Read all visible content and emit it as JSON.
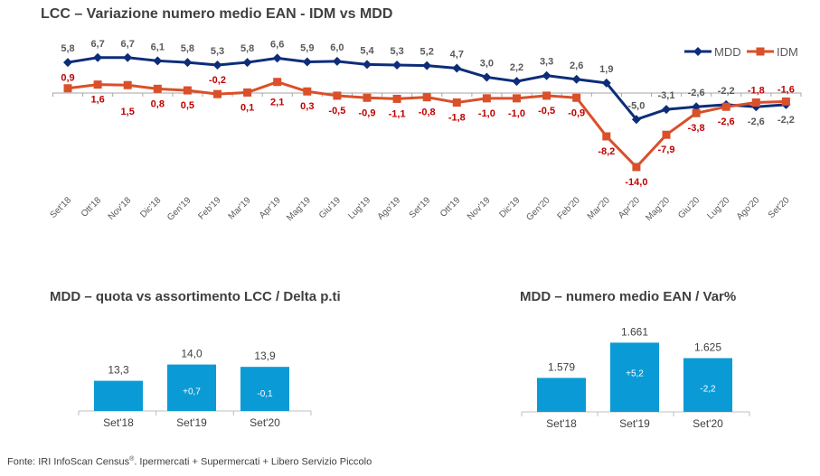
{
  "chart_data": [
    {
      "type": "line",
      "title": "LCC – Variazione numero medio EAN - IDM vs MDD",
      "categories": [
        "Set'18",
        "Ott'18",
        "Nov'18",
        "Dic'18",
        "Gen'19",
        "Feb'19",
        "Mar'19",
        "Apr'19",
        "Mag'19",
        "Giu'19",
        "Lug'19",
        "Ago'19",
        "Set'19",
        "Ott'19",
        "Nov'19",
        "Dic'19",
        "Gen'20",
        "Feb'20",
        "Mar'20",
        "Apr'20",
        "Mag'20",
        "Giu'20",
        "Lug'20",
        "Ago'20",
        "Set'20"
      ],
      "series": [
        {
          "name": "MDD",
          "color": "#0d2d7a",
          "marker": "diamond",
          "values": [
            5.8,
            6.7,
            6.7,
            6.1,
            5.8,
            5.3,
            5.8,
            6.6,
            5.9,
            6.0,
            5.4,
            5.3,
            5.2,
            4.7,
            3.0,
            2.2,
            3.3,
            2.6,
            1.9,
            -5.0,
            -3.1,
            -2.6,
            -2.2,
            -2.6,
            -2.2
          ],
          "labels": [
            "5,8",
            "6,7",
            "6,7",
            "6,1",
            "5,8",
            "5,3",
            "5,8",
            "6,6",
            "5,9",
            "6,0",
            "5,4",
            "5,3",
            "5,2",
            "4,7",
            "3,0",
            "2,2",
            "3,3",
            "2,6",
            "1,9",
            "-5,0",
            "-3,1",
            "-2,6",
            "-2,2",
            "-2,6",
            "-2,2"
          ]
        },
        {
          "name": "IDM",
          "color": "#d9502a",
          "marker": "square",
          "values": [
            0.9,
            1.6,
            1.5,
            0.8,
            0.5,
            -0.2,
            0.1,
            2.1,
            0.3,
            -0.5,
            -0.9,
            -1.1,
            -0.8,
            -1.8,
            -1.0,
            -1.0,
            -0.5,
            -0.9,
            -8.2,
            -14.0,
            -7.9,
            -3.8,
            -2.6,
            -1.8,
            -1.6
          ],
          "labels": [
            "0,9",
            "1,6",
            "1,5",
            "0,8",
            "0,5",
            "-0,2",
            "0,1",
            "2,1",
            "0,3",
            "-0,5",
            "-0,9",
            "-1,1",
            "-0,8",
            "-1,8",
            "-1,0",
            "-1,0",
            "-0,5",
            "-0,9",
            "-8,2",
            "-14,0",
            "-7,9",
            "-3,8",
            "-2,6",
            "-1,8",
            "-1,6"
          ]
        }
      ],
      "legend": "top-right",
      "grid": false
    },
    {
      "type": "bar",
      "title": "MDD – quota vs assortimento LCC / Delta p.ti",
      "categories": [
        "Set'18",
        "Set'19",
        "Set'20"
      ],
      "values": [
        13.3,
        14.0,
        13.9
      ],
      "value_labels": [
        "13,3",
        "14,0",
        "13,9"
      ],
      "inner_labels": [
        "",
        "+0,7",
        "-0,1"
      ],
      "color": "#0a9bd6",
      "ylim": [
        12,
        14.5
      ]
    },
    {
      "type": "bar",
      "title": "MDD – numero medio EAN / Var%",
      "categories": [
        "Set'18",
        "Set'19",
        "Set'20"
      ],
      "values": [
        1579,
        1661,
        1625
      ],
      "value_labels": [
        "1.579",
        "1.661",
        "1.625"
      ],
      "inner_labels": [
        "",
        "+5,2",
        "-2,2"
      ],
      "color": "#0a9bd6",
      "ylim": [
        1500,
        1700
      ]
    }
  ],
  "source": {
    "text": "Fonte: IRI InfoScan Census",
    "sup": "®",
    "rest": ". Ipermercati + Supermercati + Libero Servizio Piccolo"
  }
}
